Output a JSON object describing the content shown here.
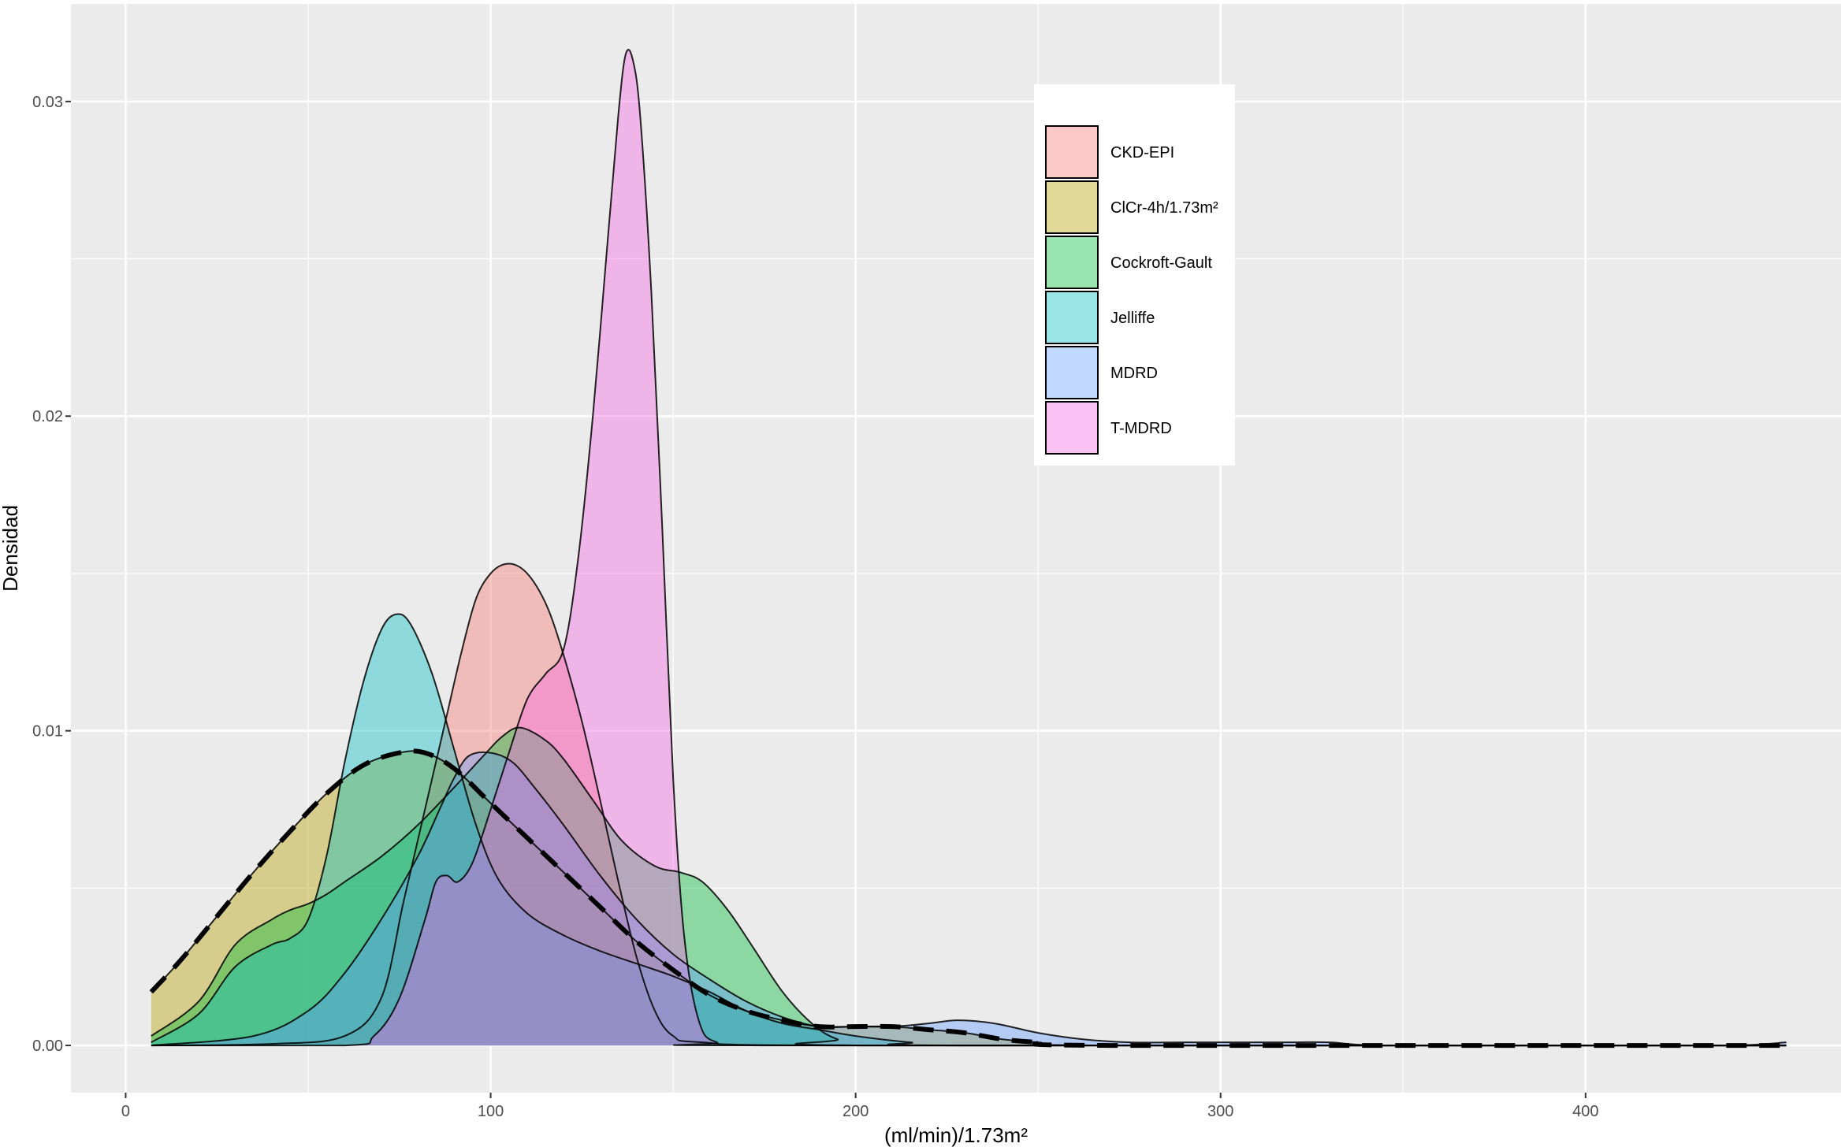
{
  "chart_data": {
    "type": "area",
    "title": "",
    "xlabel": "(ml/min)/1.73m²",
    "ylabel": "Densidad",
    "xlim": [
      -15,
      470
    ],
    "ylim": [
      -0.0015,
      0.0331
    ],
    "x_ticks": [
      0,
      100,
      200,
      300,
      400
    ],
    "x_tick_labels": [
      "0",
      "100",
      "200",
      "300",
      "400"
    ],
    "y_ticks": [
      0.0,
      0.01,
      0.02,
      0.03
    ],
    "y_tick_labels": [
      "0.00",
      "0.01",
      "0.02",
      "0.03"
    ],
    "grid": true,
    "legend": {
      "position": "top-center",
      "title": ""
    },
    "series": [
      {
        "name": "CKD-EPI",
        "color": "#F8766D",
        "points": [
          [
            7,
            0
          ],
          [
            40,
            5e-05
          ],
          [
            60,
            0.0003
          ],
          [
            70,
            0.0015
          ],
          [
            76,
            0.0045
          ],
          [
            80,
            0.0065
          ],
          [
            84,
            0.0085
          ],
          [
            88,
            0.0105
          ],
          [
            92,
            0.0125
          ],
          [
            96,
            0.0142
          ],
          [
            100,
            0.015
          ],
          [
            104,
            0.0153
          ],
          [
            108,
            0.0152
          ],
          [
            112,
            0.0147
          ],
          [
            116,
            0.0138
          ],
          [
            120,
            0.0124
          ],
          [
            125,
            0.0103
          ],
          [
            130,
            0.0078
          ],
          [
            135,
            0.0052
          ],
          [
            140,
            0.0028
          ],
          [
            145,
            0.0011
          ],
          [
            150,
            0.0003
          ],
          [
            158,
            0.0001
          ],
          [
            200,
            0
          ],
          [
            455,
            0
          ]
        ]
      },
      {
        "name": "ClCr-4h/1.73m²",
        "color": "#B79F00",
        "points": [
          [
            7,
            0.0017
          ],
          [
            15,
            0.0027
          ],
          [
            25,
            0.0041
          ],
          [
            35,
            0.0055
          ],
          [
            45,
            0.0068
          ],
          [
            55,
            0.008
          ],
          [
            65,
            0.0089
          ],
          [
            75,
            0.0093
          ],
          [
            82,
            0.0093
          ],
          [
            90,
            0.0088
          ],
          [
            100,
            0.0077
          ],
          [
            110,
            0.0066
          ],
          [
            120,
            0.0055
          ],
          [
            130,
            0.0044
          ],
          [
            140,
            0.0033
          ],
          [
            150,
            0.0024
          ],
          [
            160,
            0.0016
          ],
          [
            170,
            0.0011
          ],
          [
            180,
            0.0008
          ],
          [
            190,
            0.0006
          ],
          [
            200,
            0.0006
          ],
          [
            210,
            0.0006
          ],
          [
            220,
            0.0005
          ],
          [
            230,
            0.0004
          ],
          [
            240,
            0.0002
          ],
          [
            250,
            0.0001
          ],
          [
            270,
            0
          ],
          [
            455,
            0
          ]
        ]
      },
      {
        "name": "Cockroft-Gault",
        "color": "#00BA38",
        "points": [
          [
            7,
            0.0003
          ],
          [
            20,
            0.0014
          ],
          [
            30,
            0.0032
          ],
          [
            40,
            0.004
          ],
          [
            45,
            0.0043
          ],
          [
            50,
            0.0045
          ],
          [
            55,
            0.0048
          ],
          [
            60,
            0.0052
          ],
          [
            70,
            0.006
          ],
          [
            80,
            0.007
          ],
          [
            90,
            0.0082
          ],
          [
            98,
            0.0092
          ],
          [
            103,
            0.0098
          ],
          [
            108,
            0.0101
          ],
          [
            115,
            0.0097
          ],
          [
            120,
            0.0091
          ],
          [
            128,
            0.0078
          ],
          [
            136,
            0.0065
          ],
          [
            145,
            0.0057
          ],
          [
            152,
            0.0055
          ],
          [
            158,
            0.0052
          ],
          [
            165,
            0.0043
          ],
          [
            172,
            0.0031
          ],
          [
            180,
            0.0017
          ],
          [
            188,
            0.0007
          ],
          [
            195,
            0.0002
          ],
          [
            205,
            0
          ],
          [
            455,
            0
          ]
        ]
      },
      {
        "name": "Jelliffe",
        "color": "#00BFC4",
        "points": [
          [
            7,
            0.0001
          ],
          [
            20,
            0.001
          ],
          [
            30,
            0.0025
          ],
          [
            40,
            0.0032
          ],
          [
            45,
            0.0034
          ],
          [
            50,
            0.004
          ],
          [
            55,
            0.006
          ],
          [
            60,
            0.009
          ],
          [
            65,
            0.0115
          ],
          [
            70,
            0.0132
          ],
          [
            74,
            0.0137
          ],
          [
            78,
            0.0134
          ],
          [
            84,
            0.0118
          ],
          [
            90,
            0.0094
          ],
          [
            96,
            0.007
          ],
          [
            102,
            0.0053
          ],
          [
            110,
            0.0042
          ],
          [
            120,
            0.0035
          ],
          [
            130,
            0.003
          ],
          [
            140,
            0.0026
          ],
          [
            150,
            0.0022
          ],
          [
            160,
            0.0017
          ],
          [
            170,
            0.0011
          ],
          [
            180,
            0.0007
          ],
          [
            190,
            0.0005
          ],
          [
            200,
            0.0003
          ],
          [
            215,
            0.0001
          ],
          [
            230,
            0
          ],
          [
            455,
            0
          ]
        ]
      },
      {
        "name": "MDRD",
        "color": "#619CFF",
        "points": [
          [
            7,
            0
          ],
          [
            35,
            0.0003
          ],
          [
            50,
            0.0011
          ],
          [
            60,
            0.0023
          ],
          [
            70,
            0.004
          ],
          [
            80,
            0.006
          ],
          [
            86,
            0.0075
          ],
          [
            90,
            0.0085
          ],
          [
            94,
            0.0092
          ],
          [
            100,
            0.0093
          ],
          [
            106,
            0.009
          ],
          [
            112,
            0.0082
          ],
          [
            120,
            0.007
          ],
          [
            130,
            0.0054
          ],
          [
            140,
            0.004
          ],
          [
            150,
            0.0029
          ],
          [
            160,
            0.0021
          ],
          [
            170,
            0.0014
          ],
          [
            180,
            0.0009
          ],
          [
            190,
            0.0006
          ],
          [
            200,
            0.0006
          ],
          [
            210,
            0.0006
          ],
          [
            220,
            0.0007
          ],
          [
            228,
            0.0008
          ],
          [
            238,
            0.0007
          ],
          [
            250,
            0.0004
          ],
          [
            262,
            0.0002
          ],
          [
            275,
            0.0001
          ],
          [
            290,
            0.0001
          ],
          [
            305,
            0.0001
          ],
          [
            320,
            0.0001
          ],
          [
            330,
            0.0001
          ],
          [
            345,
            0
          ],
          [
            400,
            0
          ],
          [
            440,
            0
          ],
          [
            455,
            0.0001
          ]
        ]
      },
      {
        "name": "T-MDRD",
        "color": "#F564E3",
        "points": [
          [
            7,
            0
          ],
          [
            60,
            0
          ],
          [
            68,
            0.0003
          ],
          [
            75,
            0.0015
          ],
          [
            82,
            0.004
          ],
          [
            85,
            0.0052
          ],
          [
            88,
            0.0054
          ],
          [
            91,
            0.0052
          ],
          [
            95,
            0.0058
          ],
          [
            100,
            0.0075
          ],
          [
            105,
            0.0093
          ],
          [
            110,
            0.011
          ],
          [
            115,
            0.0118
          ],
          [
            120,
            0.0126
          ],
          [
            124,
            0.0155
          ],
          [
            128,
            0.02
          ],
          [
            132,
            0.0255
          ],
          [
            135,
            0.0296
          ],
          [
            137,
            0.0315
          ],
          [
            139,
            0.0313
          ],
          [
            141,
            0.0295
          ],
          [
            144,
            0.024
          ],
          [
            147,
            0.0165
          ],
          [
            150,
            0.0085
          ],
          [
            153,
            0.0035
          ],
          [
            157,
            0.0008
          ],
          [
            162,
            0.0001
          ],
          [
            175,
            0
          ],
          [
            455,
            0
          ]
        ]
      }
    ],
    "dashed_overlay_series": "ClCr-4h/1.73m²"
  }
}
